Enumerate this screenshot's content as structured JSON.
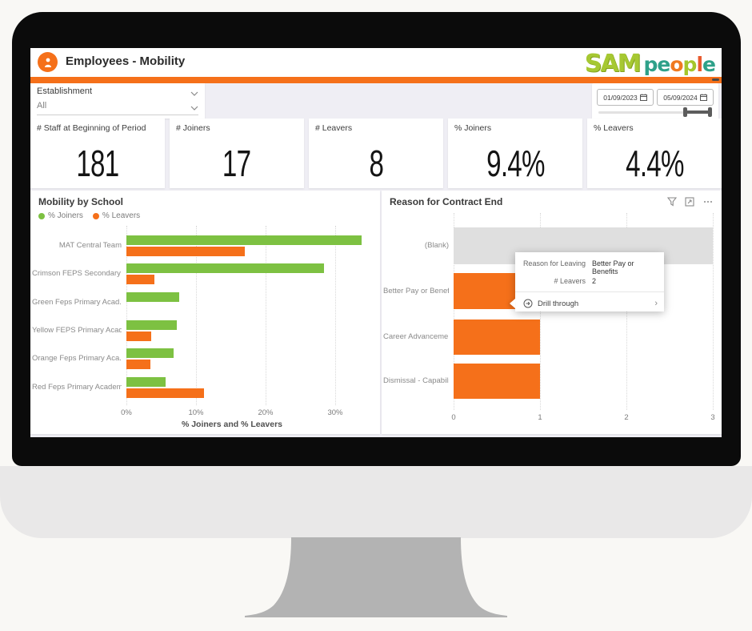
{
  "header": {
    "title": "Employees - Mobility",
    "brand_sam": "SAM",
    "brand_people_letters": [
      {
        "ch": "p",
        "color": "#2EA189"
      },
      {
        "ch": "e",
        "color": "#2EA189"
      },
      {
        "ch": "o",
        "color": "#F0791F"
      },
      {
        "ch": "p",
        "color": "#A5C62B"
      },
      {
        "ch": "l",
        "color": "#E85A2E"
      },
      {
        "ch": "e",
        "color": "#2EA189"
      }
    ]
  },
  "filters": {
    "establishment_label": "Establishment",
    "establishment_value": "All",
    "date_from": "01/09/2023",
    "date_to": "05/09/2024"
  },
  "kpis": [
    {
      "label": "# Staff at Beginning of Period",
      "value": "181"
    },
    {
      "label": "# Joiners",
      "value": "17"
    },
    {
      "label": "# Leavers",
      "value": "8"
    },
    {
      "label": "% Joiners",
      "value": "9.4%"
    },
    {
      "label": "% Leavers",
      "value": "4.4%"
    }
  ],
  "chart_data": [
    {
      "type": "bar",
      "orientation": "horizontal",
      "title": "Mobility by School",
      "categories": [
        "MAT Central Team",
        "Crimson FEPS Secondary ...",
        "Green Feps Primary Acad...",
        "Yellow FEPS Primary Acad...",
        "Orange Feps Primary Aca...",
        "Red Feps Primary Academy"
      ],
      "series": [
        {
          "name": "% Joiners",
          "color": "#7DC142",
          "values": [
            33.8,
            28.4,
            7.6,
            7.2,
            6.8,
            5.6
          ]
        },
        {
          "name": "% Leavers",
          "color": "#F5701A",
          "values": [
            17.0,
            4.0,
            0,
            3.6,
            3.4,
            11.2
          ]
        }
      ],
      "xlabel": "% Joiners and % Leavers",
      "xticks": [
        "0%",
        "10%",
        "20%",
        "30%"
      ],
      "xtick_values": [
        0,
        10,
        20,
        30
      ],
      "xlim": [
        0,
        35
      ],
      "grid": "dotted-vertical",
      "legend_position": "top-left"
    },
    {
      "type": "bar",
      "orientation": "horizontal",
      "title": "Reason for Contract End",
      "categories": [
        "(Blank)",
        "Better Pay or Benefits",
        "Career Advancement",
        "Dismissal - Capability"
      ],
      "values": [
        3,
        2,
        1,
        1
      ],
      "bar_colors": [
        "#DFDFDF",
        "#F5701A",
        "#F5701A",
        "#F5701A"
      ],
      "xticks": [
        "0",
        "1",
        "2",
        "3"
      ],
      "xtick_values": [
        0,
        1,
        2,
        3
      ],
      "xlim": [
        0,
        3
      ],
      "grid": "dotted-vertical"
    }
  ],
  "tooltip": {
    "rows": [
      {
        "label": "Reason for Leaving",
        "value": "Better Pay or Benefits"
      },
      {
        "label": "# Leavers",
        "value": "2"
      }
    ],
    "action": "Drill through"
  },
  "colors": {
    "accent_orange": "#F5701A",
    "accent_green": "#7DC142",
    "page_background": "#EFEEF4",
    "blank_bar": "#DFDFDF"
  }
}
